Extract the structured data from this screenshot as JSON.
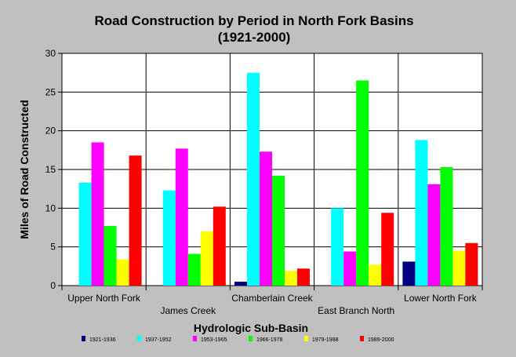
{
  "chart_data": {
    "type": "bar",
    "title": "Road Construction by Period in North Fork Basins",
    "subtitle": "(1921-2000)",
    "xlabel": "Hydrologic Sub-Basin",
    "ylabel": "Miles of Road Constructed",
    "ylim": [
      0,
      30
    ],
    "yticks": [
      "0",
      "5",
      "10",
      "15",
      "20",
      "25",
      "30"
    ],
    "grid": true,
    "legend_position": "bottom",
    "categories": [
      "Upper North Fork",
      "James Creek",
      "Chamberlain Creek",
      "East Branch North",
      "Lower North Fork"
    ],
    "series": [
      {
        "name": "1921-1936",
        "color": "#000080",
        "values": [
          0,
          0,
          0.5,
          0,
          3.1
        ]
      },
      {
        "name": "1937-1952",
        "color": "#00ffff",
        "values": [
          13.3,
          12.3,
          27.5,
          10.0,
          18.8
        ]
      },
      {
        "name": "1953-1965",
        "color": "#ff00ff",
        "values": [
          18.5,
          17.7,
          17.3,
          4.4,
          13.1
        ]
      },
      {
        "name": "1966-1978",
        "color": "#00ff00",
        "values": [
          7.7,
          4.1,
          14.2,
          26.5,
          15.3
        ]
      },
      {
        "name": "1979-1988",
        "color": "#ffff00",
        "values": [
          3.4,
          7.0,
          1.9,
          2.7,
          4.5
        ]
      },
      {
        "name": "1989-2000",
        "color": "#ff0000",
        "values": [
          16.8,
          10.2,
          2.2,
          9.4,
          5.5
        ]
      }
    ]
  }
}
